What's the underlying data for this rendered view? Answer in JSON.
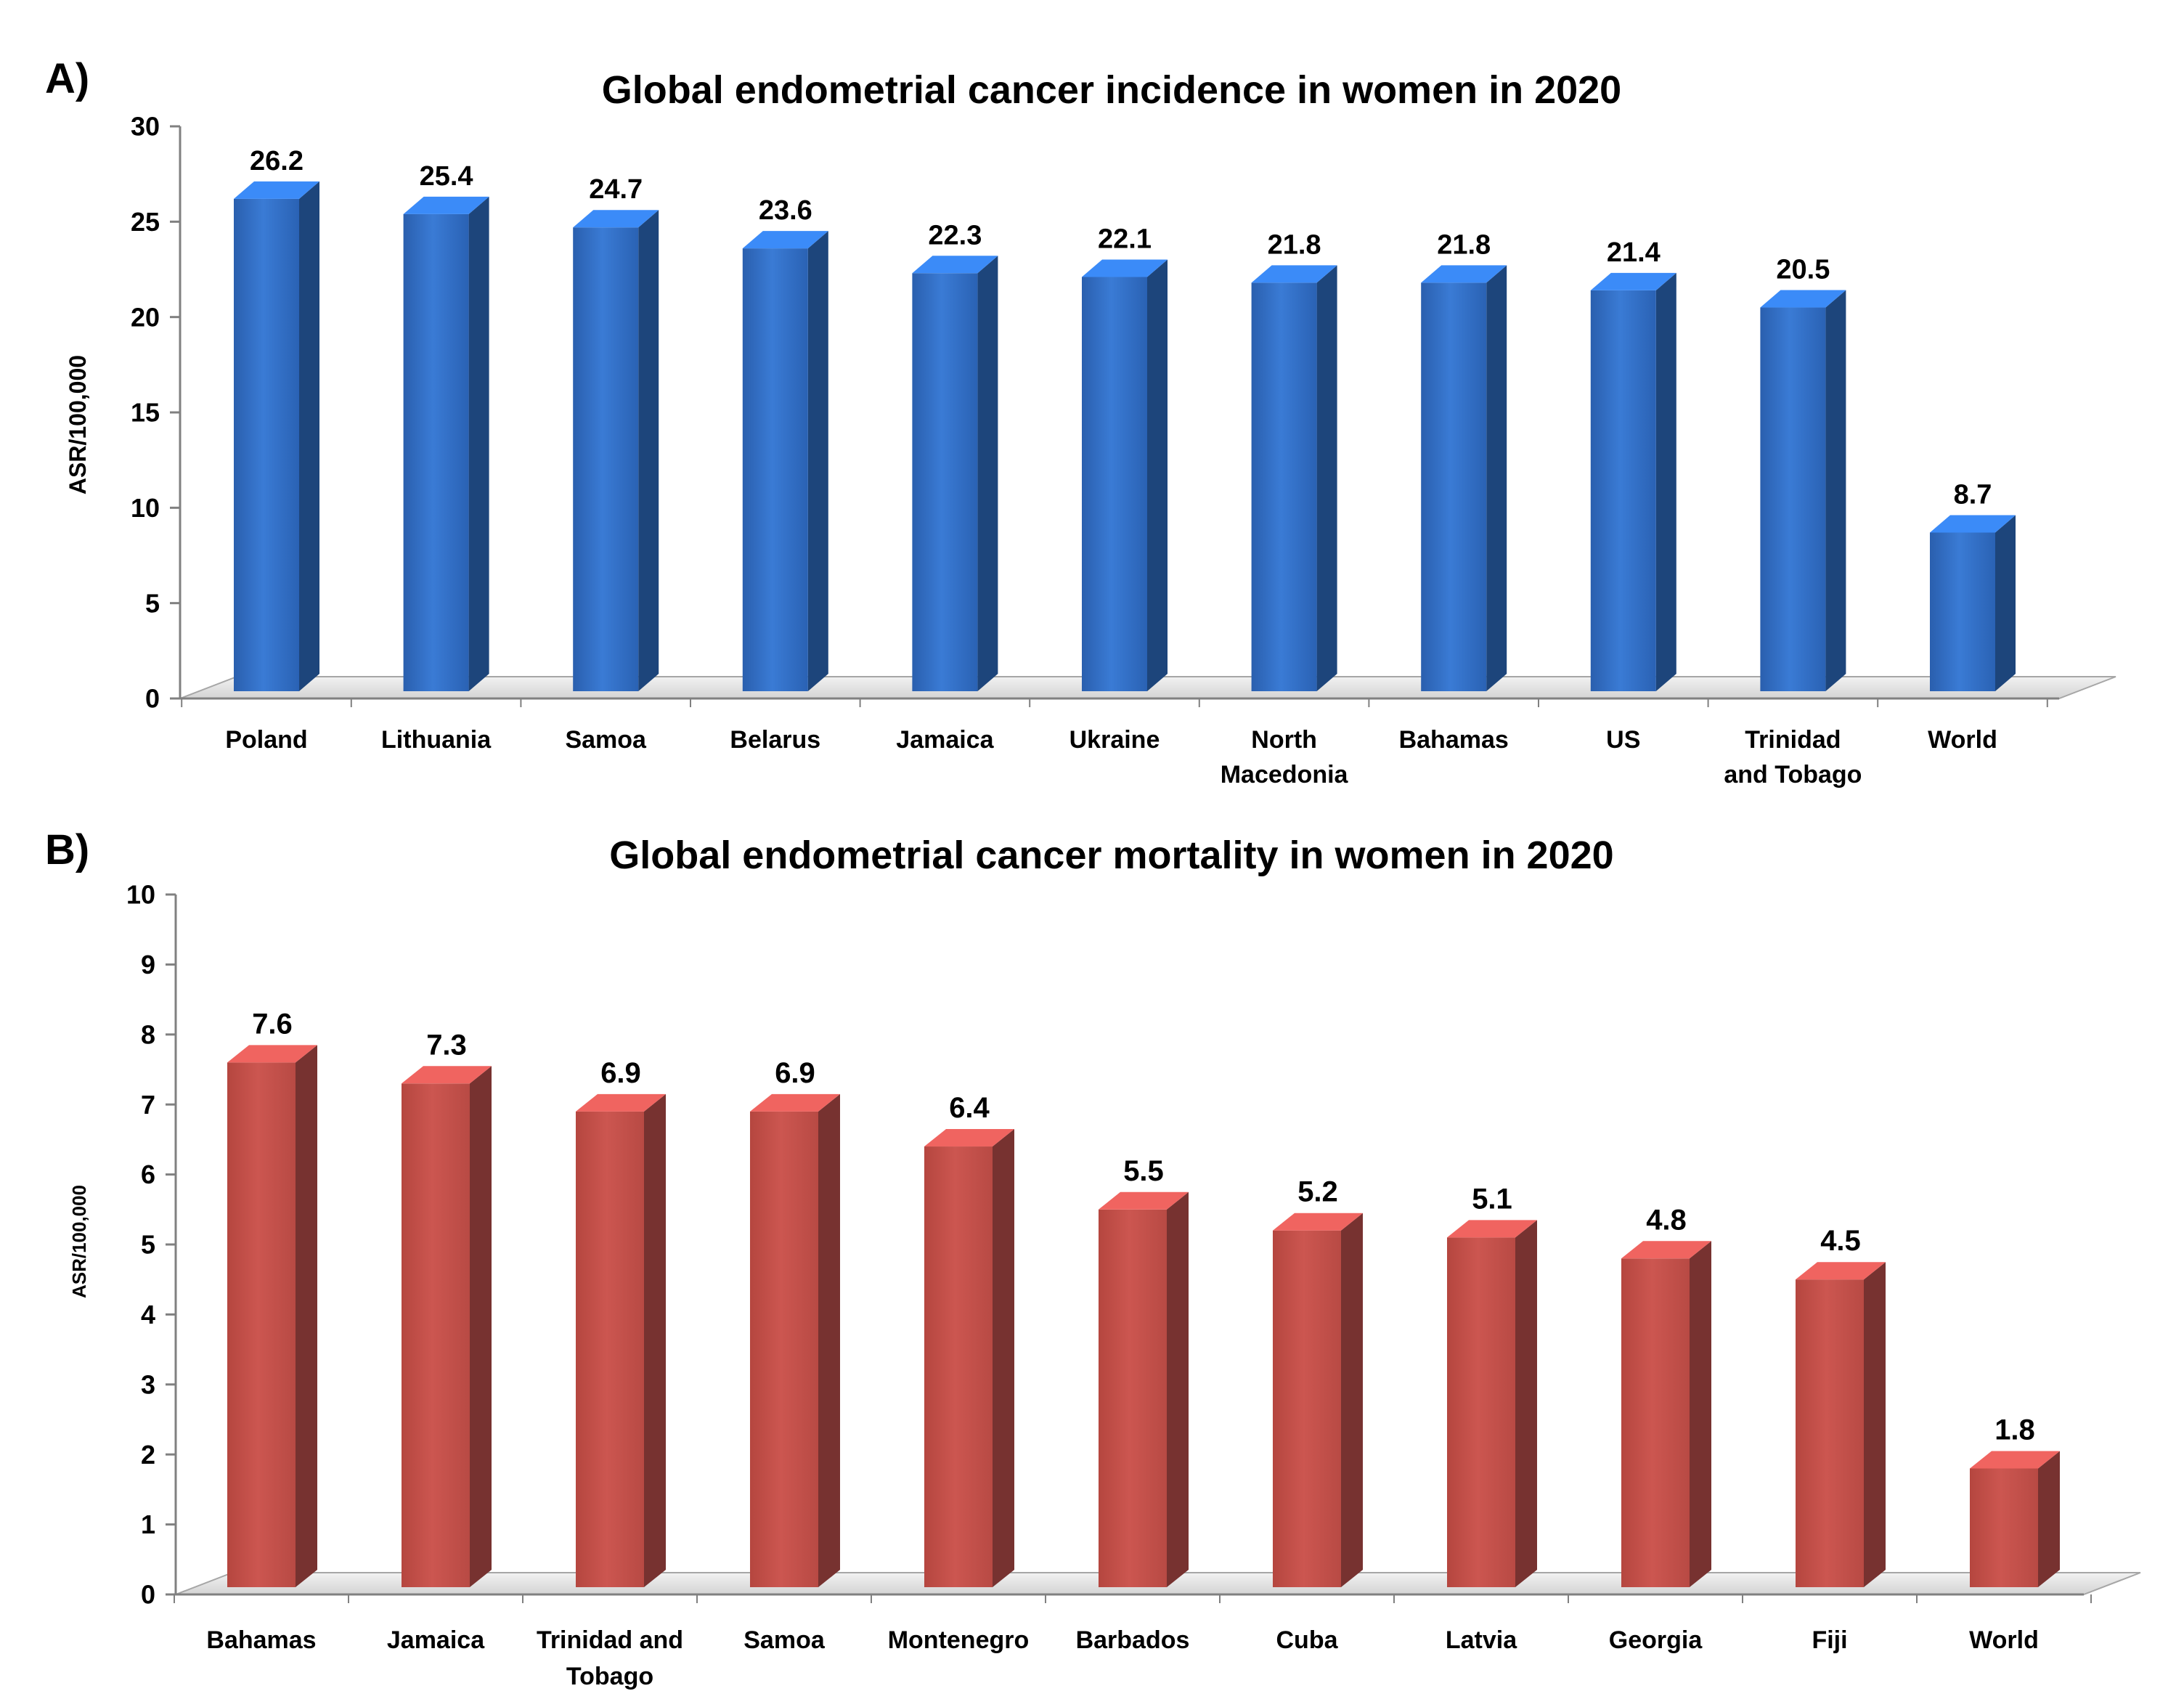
{
  "chart_data": [
    {
      "panel_label": "A)",
      "type": "bar",
      "style": "3d-column",
      "title": "Global endometrial cancer incidence in women in 2020",
      "xlabel": "",
      "ylabel": "ASR/100,000",
      "ylim": [
        0,
        30
      ],
      "yticks": [
        0,
        5,
        10,
        15,
        20,
        25,
        30
      ],
      "grid": false,
      "legend": "none",
      "color": "#2f6fc6",
      "categories": [
        "Poland",
        "Lithuania",
        "Samoa",
        "Belarus",
        "Jamaica",
        "Ukraine",
        "North\nMacedonia",
        "Bahamas",
        "US",
        "Trinidad\nand Tobago",
        "World"
      ],
      "values": [
        26.2,
        25.4,
        24.7,
        23.6,
        22.3,
        22.1,
        21.8,
        21.8,
        21.4,
        20.5,
        8.7
      ],
      "value_labels": [
        "26.2",
        "25.4",
        "24.7",
        "23.6",
        "22.3",
        "22.1",
        "21.8",
        "21.8",
        "21.4",
        "20.5",
        "8.7"
      ]
    },
    {
      "panel_label": "B)",
      "type": "bar",
      "style": "3d-column",
      "title": "Global endometrial cancer mortality in women in 2020",
      "xlabel": "",
      "ylabel": "ASR/100,000",
      "ylim": [
        0,
        10
      ],
      "yticks": [
        0,
        1,
        2,
        3,
        4,
        5,
        6,
        7,
        8,
        9,
        10
      ],
      "grid": false,
      "legend": "none",
      "color": "#c0504d",
      "categories": [
        "Bahamas",
        "Jamaica",
        "Trinidad and\nTobago",
        "Samoa",
        "Montenegro",
        "Barbados",
        "Cuba",
        "Latvia",
        "Georgia",
        "Fiji",
        "World"
      ],
      "values": [
        7.6,
        7.3,
        6.9,
        6.9,
        6.4,
        5.5,
        5.2,
        5.1,
        4.8,
        4.5,
        1.8
      ],
      "value_labels": [
        "7.6",
        "7.3",
        "6.9",
        "6.9",
        "6.4",
        "5.5",
        "5.2",
        "5.1",
        "4.8",
        "4.5",
        "1.8"
      ]
    }
  ]
}
